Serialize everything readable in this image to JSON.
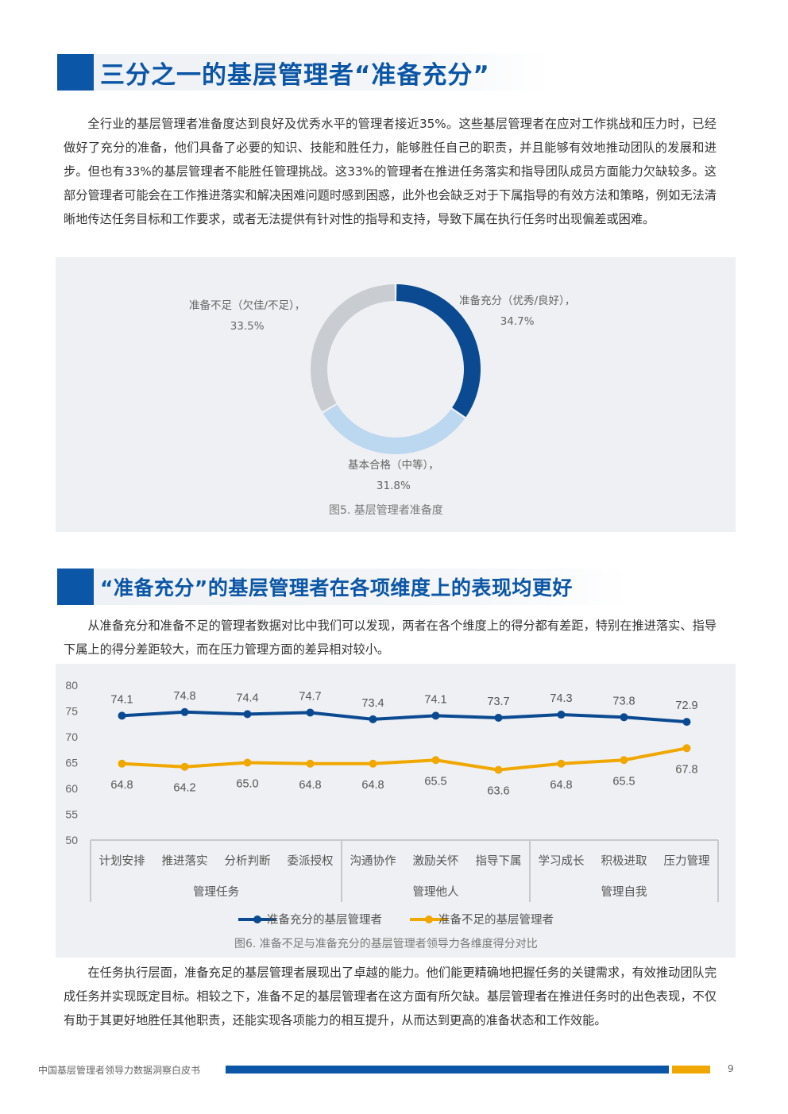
{
  "heading1": "三分之一的基层管理者“准备充分”",
  "para1": "全行业的基层管理者准备度达到良好及优秀水平的管理者接近35%。这些基层管理者在应对工作挑战和压力时，已经做好了充分的准备，他们具备了必要的知识、技能和胜任力，能够胜任自己的职责，并且能够有效地推动团队的发展和进步。但也有33%的基层管理者不能胜任管理挑战。这33%的管理者在推进任务落实和指导团队成员方面能力欠缺较多。这部分管理者可能会在工作推进落实和解决困难问题时感到困惑，此外也会缺乏对于下属指导的有效方法和策略，例如无法清晰地传达任务目标和工作要求，或者无法提供有针对性的指导和支持，导致下属在执行任务时出现偏差或困难。",
  "heading2": "“准备充分”的基层管理者在各项维度上的表现均更好",
  "para2": "从准备充分和准备不足的管理者数据对比中我们可以发现，两者在各个维度上的得分都有差距，特别在推进落实、指导下属上的得分差距较大，而在压力管理方面的差异相对较小。",
  "para3": "在任务执行层面，准备充足的基层管理者展现出了卓越的能力。他们能更精确地把握任务的关键需求，有效推动团队完成任务并实现既定目标。相较之下，准备不足的基层管理者在这方面有所欠缺。基层管理者在推进任务时的出色表现，不仅有助于其更好地胜任其他职责，还能实现各项能力的相互提升，从而达到更高的准备状态和工作效能。",
  "footer": {
    "title": "中国基层管理者领导力数据洞察白皮书",
    "page": "9"
  },
  "chart_data": [
    {
      "type": "pie",
      "caption": "图5. 基层管理者准备度",
      "slices": [
        {
          "label": "准备充分（优秀/良好），",
          "value": 34.7,
          "value_label": "34.7%",
          "color": "#0b4a91"
        },
        {
          "label": "基本合格（中等），",
          "value": 31.8,
          "value_label": "31.8%",
          "color": "#bcd7f0"
        },
        {
          "label": "准备不足（欠佳/不足），",
          "value": 33.5,
          "value_label": "33.5%",
          "color": "#c9ccd1"
        }
      ]
    },
    {
      "type": "line",
      "caption": "图6. 准备不足与准备充分的基层管理者领导力各维度得分对比",
      "categories": [
        "计划安排",
        "推进落实",
        "分析判断",
        "委派授权",
        "沟通协作",
        "激励关怀",
        "指导下属",
        "学习成长",
        "积极进取",
        "压力管理"
      ],
      "groups": [
        {
          "label": "管理任务",
          "count": 4
        },
        {
          "label": "管理他人",
          "count": 3
        },
        {
          "label": "管理自我",
          "count": 3
        }
      ],
      "ylim": [
        50,
        80
      ],
      "yticks": [
        "80",
        "75",
        "70",
        "65",
        "60",
        "55",
        "50"
      ],
      "grid": false,
      "legend": "bottom",
      "series": [
        {
          "name": "准备充分的基层管理者",
          "color": "#0b4a91",
          "values": [
            74.1,
            74.8,
            74.4,
            74.7,
            73.4,
            74.1,
            73.7,
            74.3,
            73.8,
            72.9
          ],
          "labels": [
            "74.1",
            "74.8",
            "74.4",
            "74.7",
            "73.4",
            "74.1",
            "73.7",
            "74.3",
            "73.8",
            "72.9"
          ]
        },
        {
          "name": "准备不足的基层管理者",
          "color": "#f0a800",
          "values": [
            64.8,
            64.2,
            65.0,
            64.8,
            64.8,
            65.5,
            63.6,
            64.8,
            65.5,
            67.8
          ],
          "labels": [
            "64.8",
            "64.2",
            "65.0",
            "64.8",
            "64.8",
            "65.5",
            "63.6",
            "64.8",
            "65.5",
            "67.8"
          ]
        }
      ]
    }
  ]
}
